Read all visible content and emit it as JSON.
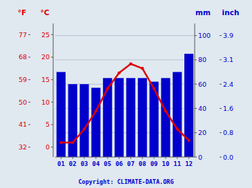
{
  "chart_data": {
    "type": "bar",
    "categories": [
      "01",
      "02",
      "03",
      "04",
      "05",
      "06",
      "07",
      "08",
      "09",
      "10",
      "11",
      "12"
    ],
    "series": [
      {
        "type": "bar",
        "color": "#0000cc",
        "values": [
          70,
          60,
          60,
          57,
          65,
          65,
          65,
          65,
          62,
          65,
          70,
          85
        ]
      },
      {
        "type": "line",
        "axis": "y2",
        "color": "#dd0000",
        "marker": "circle",
        "values": [
          1.0,
          1.0,
          4.0,
          8.0,
          13.0,
          16.5,
          18.5,
          17.5,
          13.0,
          8.0,
          4.0,
          1.5
        ]
      }
    ],
    "ylabel": "mm",
    "ylim": [
      0,
      110
    ],
    "yticks": [
      0,
      20,
      40,
      60,
      80,
      100
    ],
    "y2label": "°C",
    "y2lim": [
      -2.2,
      27.5
    ],
    "y2ticks": [
      0,
      5,
      10,
      15,
      20,
      25
    ],
    "y3label": "inch",
    "y3ticks": [
      {
        "value": 0,
        "label": "0.0"
      },
      {
        "value": 20,
        "label": "0.8"
      },
      {
        "value": 40,
        "label": "1.6"
      },
      {
        "value": 60,
        "label": "2.4"
      },
      {
        "value": 80,
        "label": "3.1"
      },
      {
        "value": 100,
        "label": "3.9"
      }
    ],
    "y4label": "°F",
    "y4ticks": [
      {
        "value": 0,
        "label": "32"
      },
      {
        "value": 5,
        "label": "41"
      },
      {
        "value": 10,
        "label": "50"
      },
      {
        "value": 15,
        "label": "59"
      },
      {
        "value": 20,
        "label": "68"
      },
      {
        "value": 25,
        "label": "77"
      }
    ],
    "grid": true,
    "annotations": [
      "Copyright: CLIMATE-DATA.ORG"
    ]
  }
}
